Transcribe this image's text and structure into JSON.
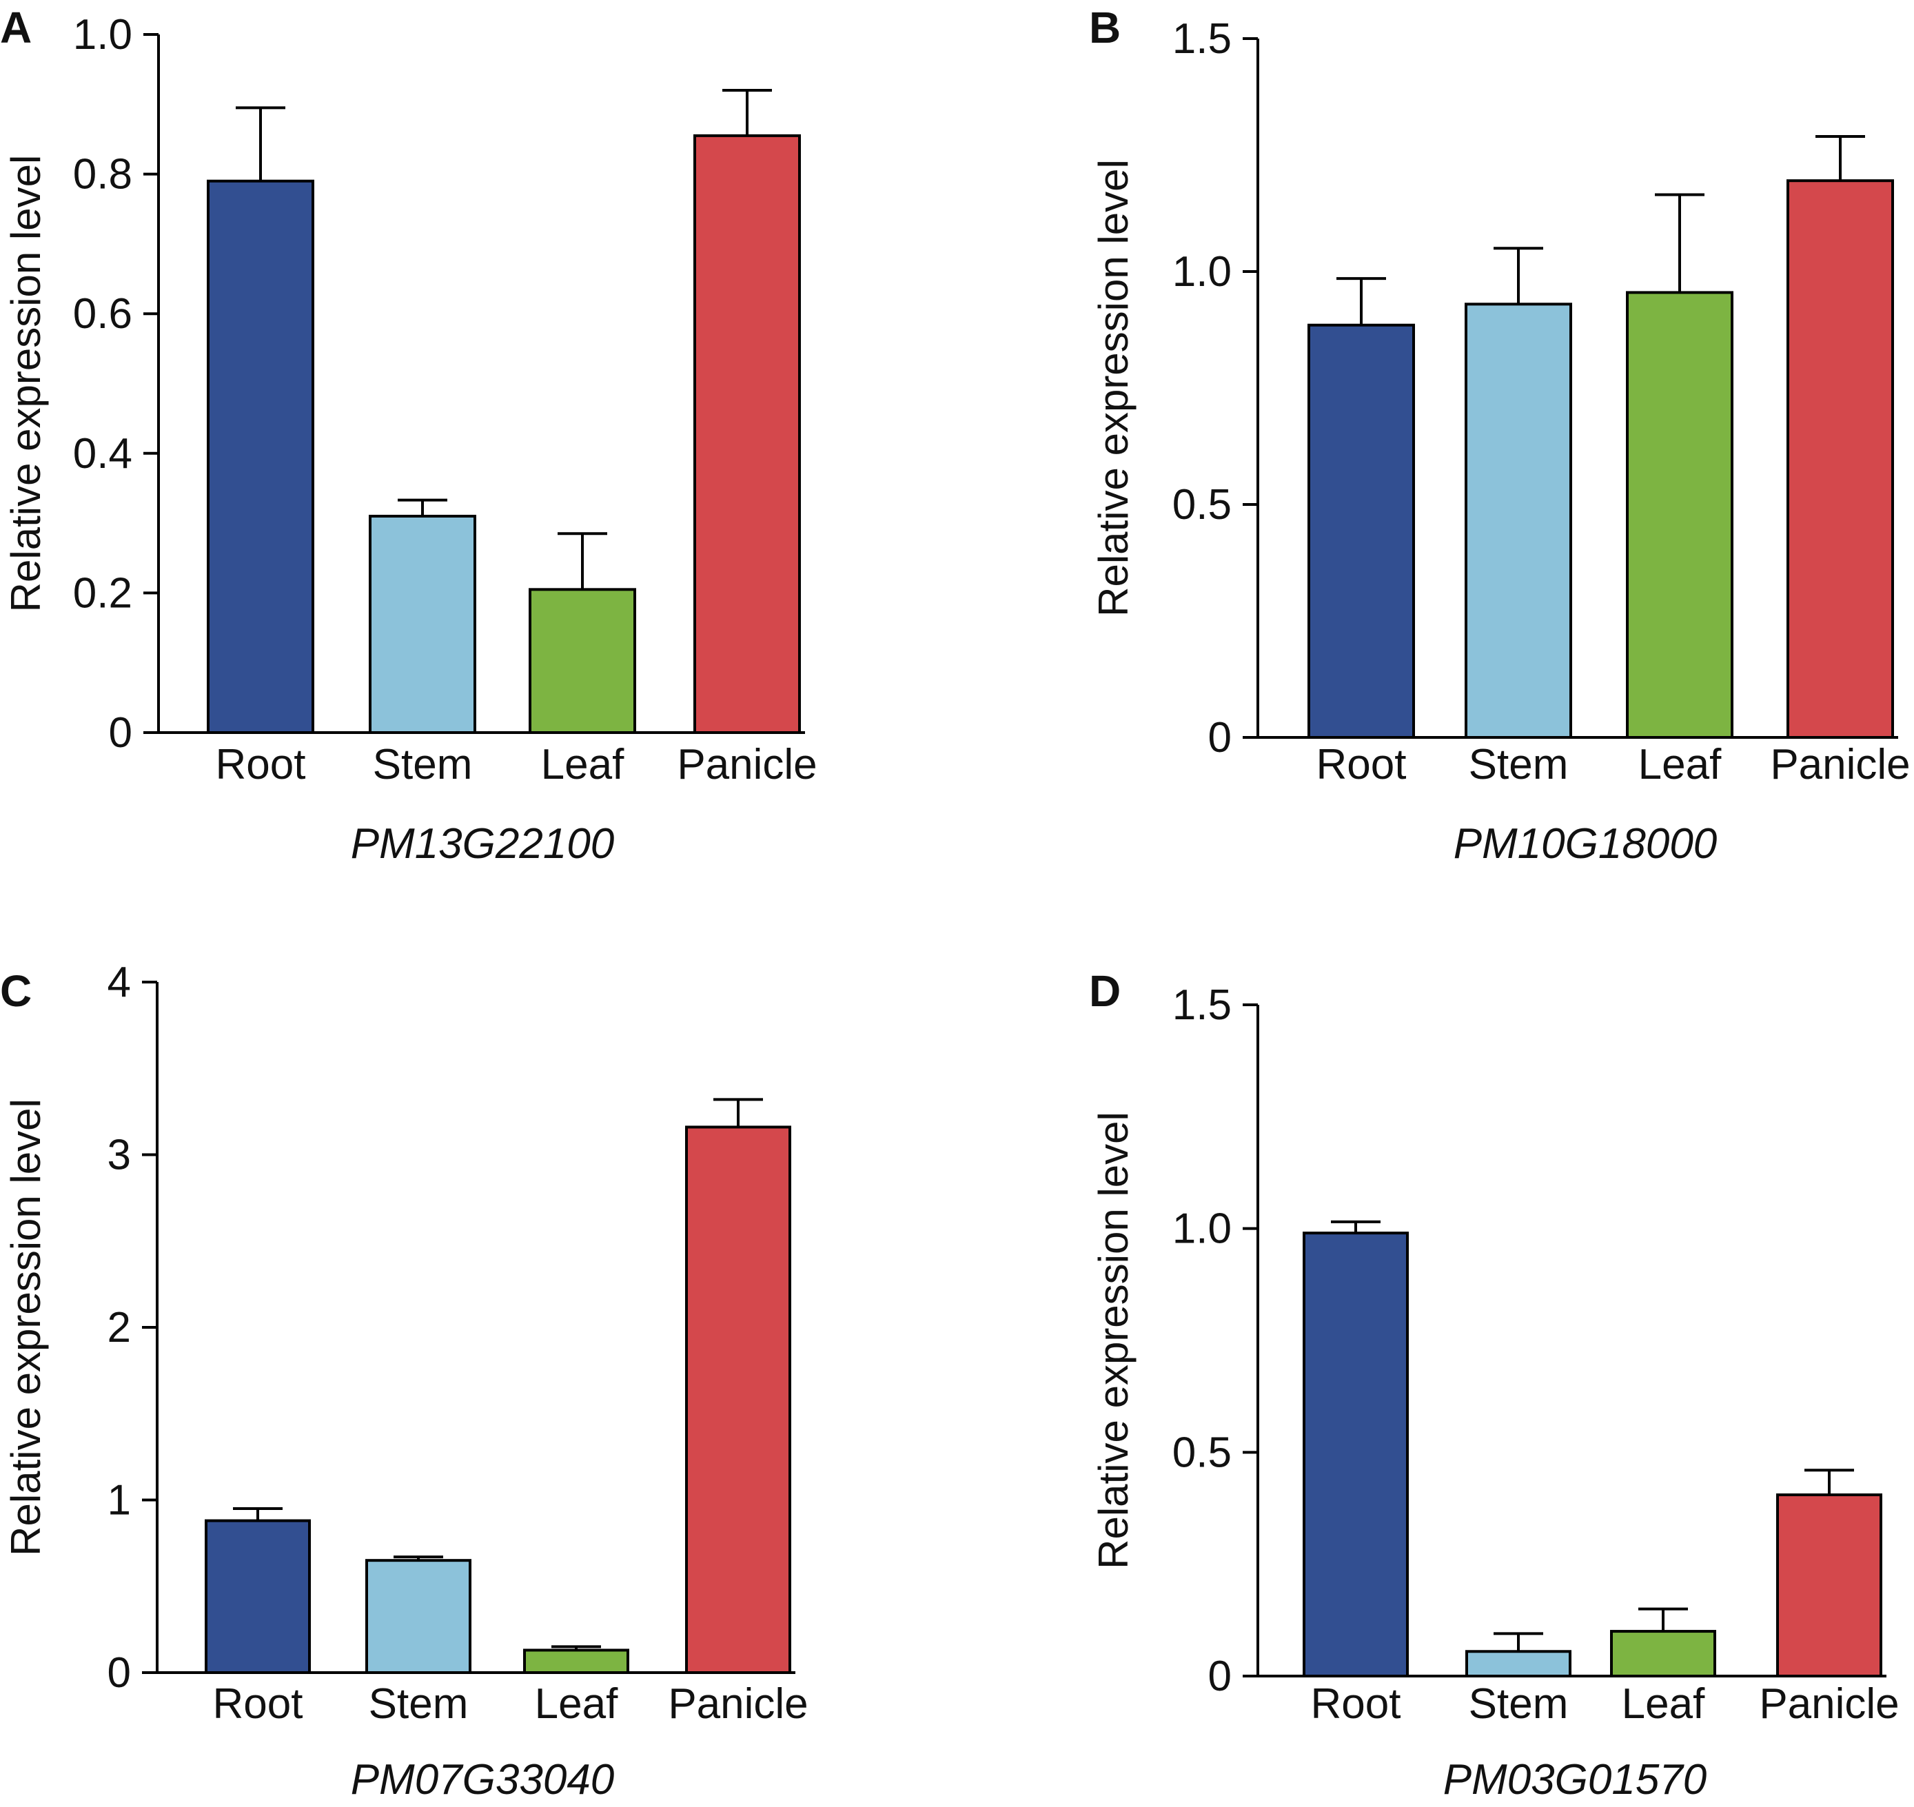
{
  "colors": {
    "root": "#324F91",
    "stem": "#8CC2DA",
    "leaf": "#7DB442",
    "panicle": "#D4484C"
  },
  "chart_data": [
    {
      "panel": "A",
      "type": "bar",
      "title": "",
      "xlabel": "PM13G22100",
      "ylabel": "Relative expression level",
      "categories": [
        "Root",
        "Stem",
        "Leaf",
        "Panicle"
      ],
      "values": [
        0.79,
        0.31,
        0.205,
        0.855
      ],
      "errors": [
        0.105,
        0.023,
        0.08,
        0.065
      ],
      "ylim": [
        0,
        1.0
      ],
      "yticks": [
        0,
        0.2,
        0.4,
        0.6,
        0.8,
        1.0
      ],
      "ytick_labels": [
        "0",
        "0.2",
        "0.4",
        "0.6",
        "0.8",
        "1.0"
      ],
      "grid": false
    },
    {
      "panel": "B",
      "type": "bar",
      "title": "",
      "xlabel": "PM10G18000",
      "ylabel": "Relative expression level",
      "categories": [
        "Root",
        "Stem",
        "Leaf",
        "Panicle"
      ],
      "values": [
        0.885,
        0.93,
        0.955,
        1.195
      ],
      "errors": [
        0.1,
        0.12,
        0.21,
        0.095
      ],
      "ylim": [
        0,
        1.5
      ],
      "yticks": [
        0,
        0.5,
        1.0,
        1.5
      ],
      "ytick_labels": [
        "0",
        "0.5",
        "1.0",
        "1.5"
      ],
      "grid": false
    },
    {
      "panel": "C",
      "type": "bar",
      "title": "",
      "xlabel": "PM07G33040",
      "ylabel": "Relative expression level",
      "categories": [
        "Root",
        "Stem",
        "Leaf",
        "Panicle"
      ],
      "values": [
        0.88,
        0.65,
        0.13,
        3.16
      ],
      "errors": [
        0.07,
        0.02,
        0.02,
        0.16
      ],
      "ylim": [
        0,
        4
      ],
      "yticks": [
        0,
        1,
        2,
        3,
        4
      ],
      "ytick_labels": [
        "0",
        "1",
        "2",
        "3",
        "4"
      ],
      "grid": false
    },
    {
      "panel": "D",
      "type": "bar",
      "title": "",
      "xlabel": "PM03G01570",
      "ylabel": "Relative expression level",
      "categories": [
        "Root",
        "Stem",
        "Leaf",
        "Panicle"
      ],
      "values": [
        0.99,
        0.055,
        0.1,
        0.405
      ],
      "errors": [
        0.025,
        0.04,
        0.05,
        0.055
      ],
      "ylim": [
        0,
        1.5
      ],
      "yticks": [
        0,
        0.5,
        1.0,
        1.5
      ],
      "ytick_labels": [
        "0",
        "0.5",
        "1.0",
        "1.5"
      ],
      "grid": false
    }
  ]
}
